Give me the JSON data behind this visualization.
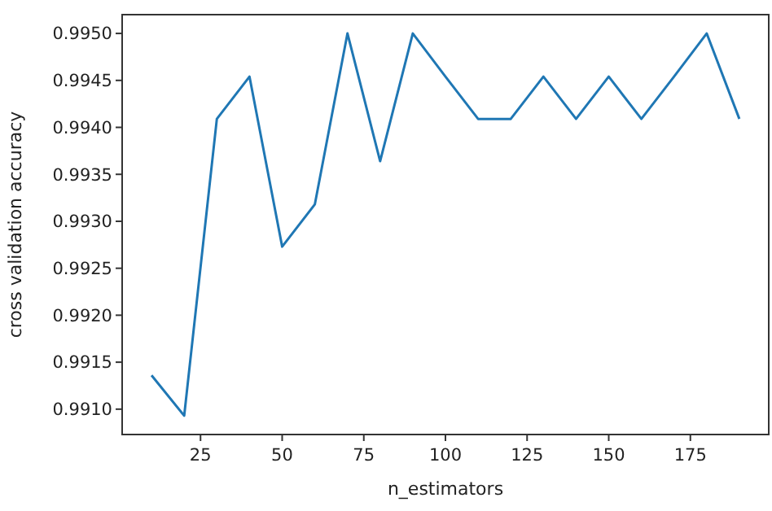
{
  "chart_data": {
    "type": "line",
    "xlabel": "n_estimators",
    "ylabel": "cross validation accuracy",
    "x": [
      10,
      20,
      30,
      40,
      50,
      60,
      70,
      80,
      90,
      100,
      110,
      120,
      130,
      140,
      150,
      160,
      170,
      180,
      190
    ],
    "series": [
      {
        "color": "#1f77b4",
        "values": [
          0.99136,
          0.99093,
          0.99409,
          0.99454,
          0.99273,
          0.99318,
          0.995,
          0.99364,
          0.995,
          0.99454,
          0.99409,
          0.99409,
          0.99454,
          0.99409,
          0.99454,
          0.99409,
          0.99454,
          0.995,
          0.99409
        ]
      }
    ],
    "xlim": [
      1,
      199
    ],
    "xticks": [
      25,
      50,
      75,
      100,
      125,
      150,
      175
    ],
    "ylim": [
      0.99073,
      0.9952
    ],
    "yticks": [
      {
        "value": 0.991,
        "label": "0.9910"
      },
      {
        "value": 0.9915,
        "label": "0.9915"
      },
      {
        "value": 0.992,
        "label": "0.9920"
      },
      {
        "value": 0.9925,
        "label": "0.9925"
      },
      {
        "value": 0.993,
        "label": "0.9930"
      },
      {
        "value": 0.9935,
        "label": "0.9935"
      },
      {
        "value": 0.994,
        "label": "0.9940"
      },
      {
        "value": 0.9945,
        "label": "0.9945"
      },
      {
        "value": 0.995,
        "label": "0.9950"
      }
    ],
    "grid": false
  }
}
